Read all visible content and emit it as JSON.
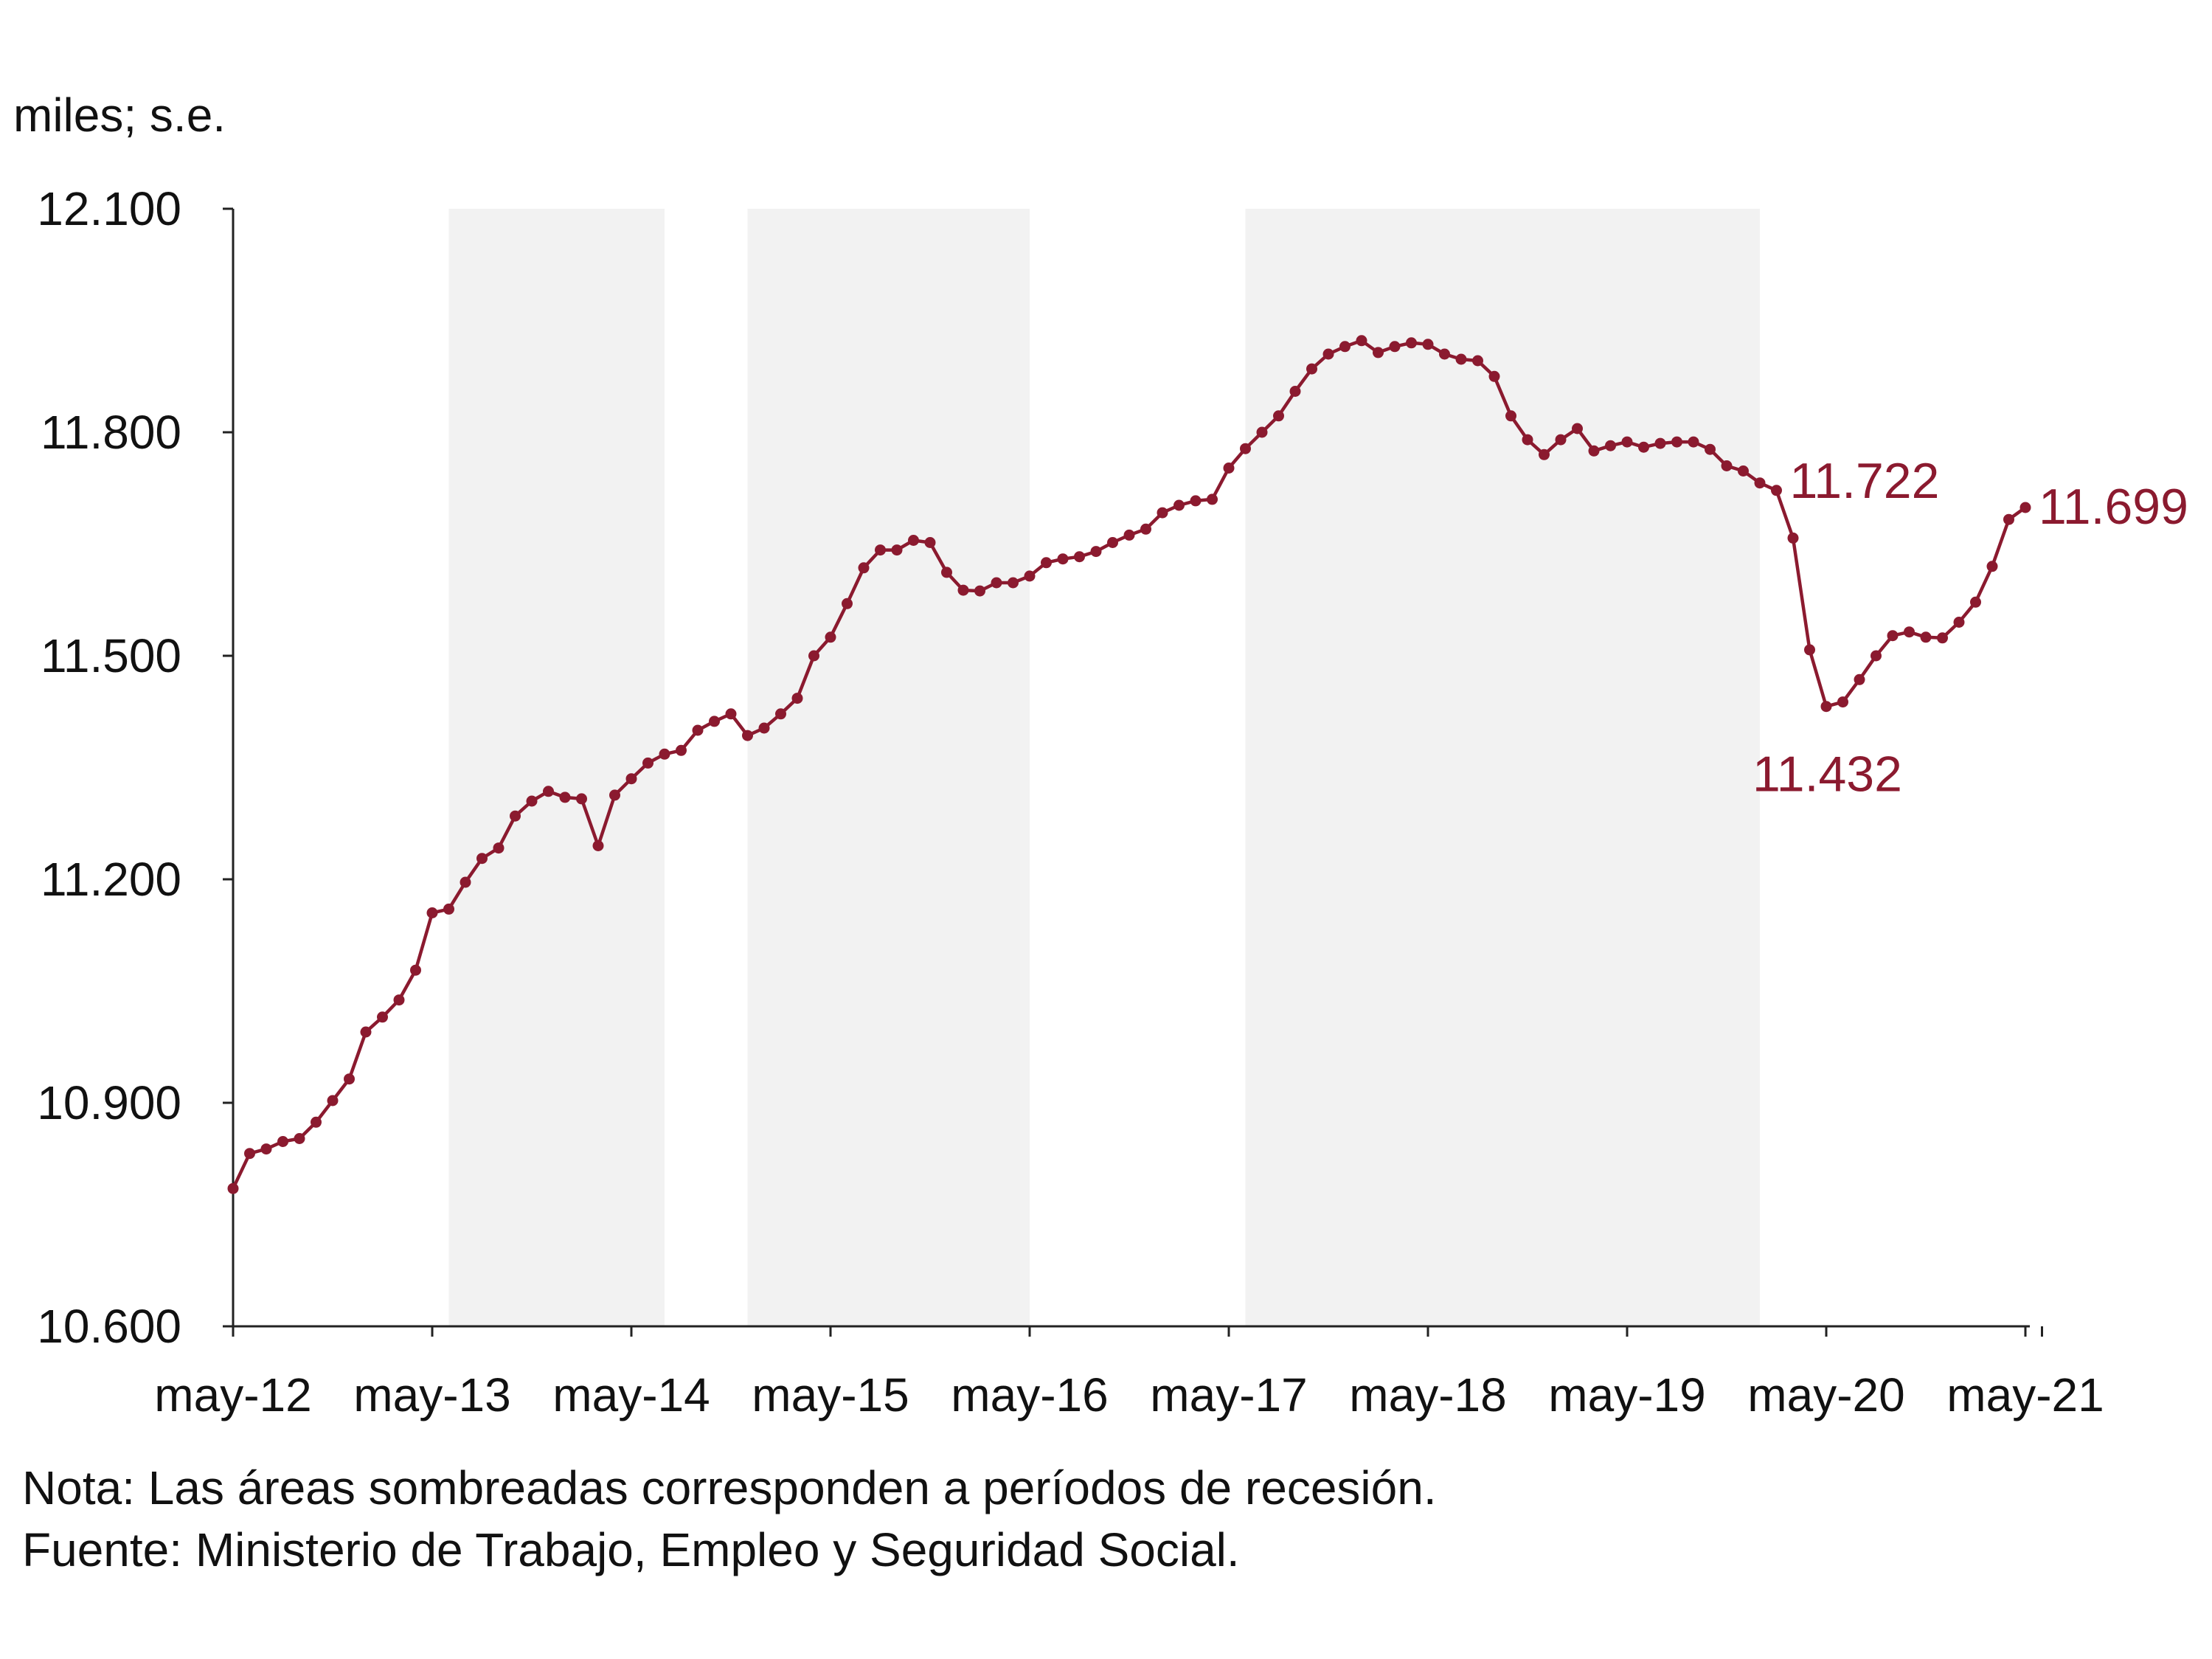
{
  "chart_data": {
    "type": "line",
    "unit_label": "miles; s.e.",
    "ylim": [
      10600,
      12100
    ],
    "yticks": [
      10600,
      10900,
      11200,
      11500,
      11800,
      12100
    ],
    "ytick_labels": [
      "10.600",
      "10.900",
      "11.200",
      "11.500",
      "11.800",
      "12.100"
    ],
    "xtick_labels": [
      "may-12",
      "may-13",
      "may-14",
      "may-15",
      "may-16",
      "may-17",
      "may-18",
      "may-19",
      "may-20",
      "may-21"
    ],
    "x_start": "may-12",
    "x_end": "jun-21",
    "grid": false,
    "legend": "none",
    "series_color": "#8b1a2f",
    "recession_color": "#f2f2f2",
    "recessions": [
      {
        "start": "jun-13",
        "end": "jul-14"
      },
      {
        "start": "jan-15",
        "end": "may-16"
      },
      {
        "start": "jun-17",
        "end": "ene-20"
      }
    ],
    "series": [
      {
        "values": [
          10785,
          10832,
          10838,
          10848,
          10852,
          10874,
          10903,
          10932,
          10995,
          11015,
          11038,
          11078,
          11155,
          11160,
          11196,
          11228,
          11242,
          11285,
          11305,
          11318,
          11310,
          11308,
          11245,
          11313,
          11335,
          11356,
          11368,
          11373,
          11400,
          11412,
          11422,
          11393,
          11403,
          11422,
          11443,
          11500,
          11525,
          11570,
          11618,
          11642,
          11642,
          11655,
          11652,
          11612,
          11588,
          11587,
          11598,
          11598,
          11607,
          11625,
          11630,
          11633,
          11640,
          11652,
          11662,
          11670,
          11692,
          11702,
          11708,
          11710,
          11752,
          11778,
          11800,
          11822,
          11855,
          11885,
          11905,
          11915,
          11923,
          11907,
          11915,
          11920,
          11918,
          11905,
          11898,
          11896,
          11875,
          11822,
          11790,
          11770,
          11790,
          11805,
          11775,
          11782,
          11787,
          11780,
          11785,
          11787,
          11787,
          11777,
          11755,
          11748,
          11732,
          11722,
          11658,
          11508,
          11432,
          11438,
          11468,
          11500,
          11527,
          11532,
          11525,
          11524,
          11545,
          11572,
          11620,
          11683,
          11699
        ]
      }
    ],
    "annotations": [
      {
        "label": "11.722",
        "value": 11722
      },
      {
        "label": "11.432",
        "value": 11432
      },
      {
        "label": "11.699",
        "value": 11699
      }
    ]
  },
  "notes": {
    "nota": "Nota: Las áreas sombreadas corresponden a períodos de recesión.",
    "fuente": "Fuente: Ministerio de Trabajo, Empleo y Seguridad Social."
  }
}
